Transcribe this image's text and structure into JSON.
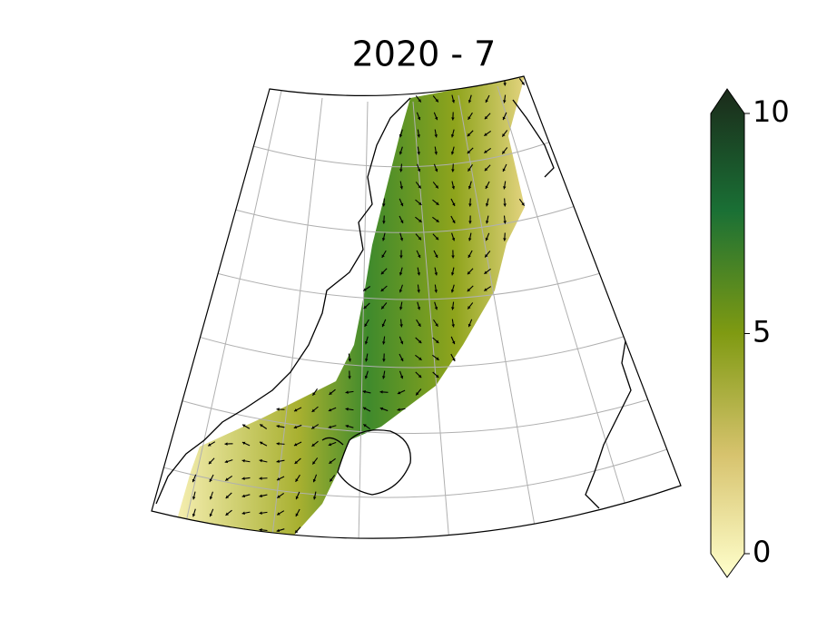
{
  "title": "2020 - 7",
  "colorbar": {
    "lim": [
      0,
      10
    ],
    "ticks": [
      0,
      5,
      10
    ],
    "colors": [
      "#ffffcc",
      "#d7c36e",
      "#7f9a12",
      "#1a7035",
      "#1b2a1a"
    ]
  }
}
